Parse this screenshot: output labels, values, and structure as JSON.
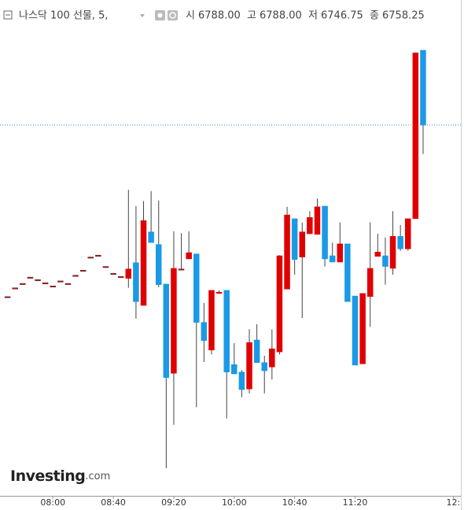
{
  "chart_data": {
    "type": "candlestick",
    "title": "나스닥 100 선물, 5,",
    "header_ohlc": {
      "names": [
        "시",
        "고",
        "저",
        "종"
      ],
      "values": [
        6788,
        6788,
        6746.75,
        6758.25
      ],
      "value_labels": [
        "6788.00",
        "6788.00",
        "6746.75",
        "6758.25"
      ]
    },
    "watermark": {
      "brand": "Investing",
      "suffix": ".com"
    },
    "up_color": "#e00000",
    "down_color": "#1a9ae6",
    "wick_color": "#444444",
    "price_line_color": "#2a8fd8",
    "xlim": [
      445,
      750
    ],
    "ylim": [
      6610.75,
      6808
    ],
    "xticks": [
      {
        "value": 480,
        "label": "08:00"
      },
      {
        "value": 520,
        "label": "08:40"
      },
      {
        "value": 560,
        "label": "09:20"
      },
      {
        "value": 600,
        "label": "10:00"
      },
      {
        "value": 640,
        "label": "10:40"
      },
      {
        "value": 680,
        "label": "11:20"
      },
      {
        "value": 745,
        "label": "12:"
      }
    ],
    "x": [
      450,
      455,
      460,
      465,
      470,
      475,
      480,
      485,
      490,
      495,
      500,
      505,
      510,
      515,
      520,
      525,
      530,
      535,
      540,
      545,
      550,
      555,
      560,
      565,
      570,
      575,
      580,
      585,
      590,
      595,
      600,
      605,
      610,
      615,
      620,
      625,
      630,
      635,
      640,
      645,
      650,
      655,
      660,
      665,
      670,
      675,
      680,
      685,
      690,
      695,
      700,
      705,
      710,
      715,
      720,
      725
    ],
    "open": [
      6690,
      6693.5,
      6695.25,
      6697.75,
      6696.75,
      6695.5,
      6694.25,
      6696.25,
      6695.25,
      6698.5,
      6700.5,
      6705.75,
      6706.5,
      6702,
      6699.25,
      6698,
      6697.25,
      6703.5,
      6686.5,
      6715.75,
      6710.75,
      6695,
      6659.5,
      6701,
      6705,
      6707,
      6679.75,
      6668.75,
      6691.25,
      6692.5,
      6663,
      6660,
      6653.25,
      6672.75,
      6663.75,
      6662,
      6668,
      6693,
      6721,
      6705.75,
      6715,
      6714.75,
      6726,
      6706.25,
      6703.75,
      6711,
      6690.25,
      6663.25,
      6690,
      6706,
      6706.25,
      6701.25,
      6714,
      6709,
      6721,
      6788
    ],
    "high": [
      6690,
      6693.5,
      6695.25,
      6697.75,
      6696.75,
      6695.5,
      6694.25,
      6696.25,
      6695.25,
      6698.5,
      6700.5,
      6705.75,
      6706.5,
      6702,
      6699.25,
      6698,
      6732.5,
      6726,
      6728,
      6732,
      6728.25,
      6695,
      6716,
      6715.25,
      6716,
      6707,
      6687.5,
      6692.5,
      6692.5,
      6692.5,
      6671.5,
      6660.75,
      6677,
      6679,
      6666.5,
      6677,
      6706.5,
      6725.75,
      6721,
      6719.5,
      6724,
      6729,
      6726,
      6711.5,
      6719.5,
      6711,
      6690.25,
      6691.25,
      6719.5,
      6715,
      6713.5,
      6724,
      6718.5,
      6721,
      6787,
      6788
    ],
    "low": [
      6690,
      6693.5,
      6695.25,
      6697.75,
      6696.75,
      6695.5,
      6694.25,
      6696.25,
      6695.25,
      6698.5,
      6700.5,
      6705.75,
      6706.5,
      6702,
      6699.25,
      6698,
      6693.5,
      6681.25,
      6686.5,
      6711.5,
      6693.75,
      6621.75,
      6639,
      6701,
      6705,
      6646,
      6664,
      6667,
      6691.25,
      6641.5,
      6659.25,
      6650,
      6651.5,
      6663.75,
      6651.5,
      6657,
      6667,
      6693,
      6698.75,
      6681.5,
      6715,
      6714.75,
      6702,
      6703.75,
      6703.75,
      6688,
      6662.75,
      6663.25,
      6678,
      6706,
      6694.75,
      6698.75,
      6708.25,
      6708.25,
      6721,
      6746.75
    ],
    "close": [
      6690,
      6693.5,
      6695.25,
      6697.75,
      6696.75,
      6695.5,
      6694.25,
      6696.25,
      6695.25,
      6698.5,
      6700.5,
      6705.75,
      6706.5,
      6702,
      6699.25,
      6698,
      6701,
      6688,
      6720.25,
      6711.5,
      6694.75,
      6657.75,
      6701.25,
      6701,
      6707.5,
      6679.75,
      6672.5,
      6692.5,
      6691.75,
      6660,
      6659.25,
      6653,
      6671.75,
      6663.75,
      6660.5,
      6669.25,
      6706.25,
      6722.5,
      6704.75,
      6715.75,
      6721.5,
      6725.75,
      6705,
      6703.75,
      6711,
      6688,
      6662.75,
      6691.25,
      6701.25,
      6707.75,
      6702,
      6714,
      6709,
      6721,
      6787,
      6758.25
    ]
  }
}
